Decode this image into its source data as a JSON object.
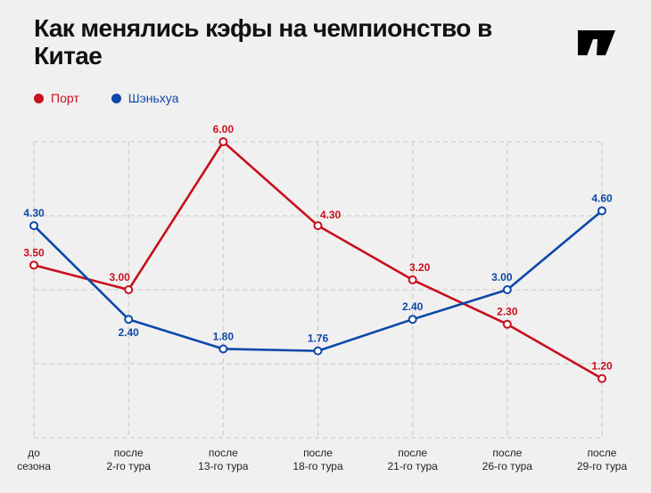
{
  "title": "Как менялись кэфы на чемпионство в Китае",
  "logo_text": "W",
  "chart_data": {
    "type": "line",
    "title": "Как менялись кэфы на чемпионство в Китае",
    "categories": [
      [
        "до",
        "сезона"
      ],
      [
        "после",
        "2-го тура"
      ],
      [
        "после",
        "13-го тура"
      ],
      [
        "после",
        "18-го тура"
      ],
      [
        "после",
        "21-го тура"
      ],
      [
        "после",
        "26-го тура"
      ],
      [
        "после",
        "29-го тура"
      ]
    ],
    "series": [
      {
        "name": "Порт",
        "color": "#c8101e",
        "values": [
          3.5,
          3.0,
          6.0,
          4.3,
          3.2,
          2.3,
          1.2
        ],
        "labels": [
          "3.50",
          "3.00",
          "6.00",
          "4.30",
          "3.20",
          "2.30",
          "1.20"
        ]
      },
      {
        "name": "Шэньхуа",
        "color": "#0b48a8",
        "values": [
          4.3,
          2.4,
          1.8,
          1.76,
          2.4,
          3.0,
          4.6
        ],
        "labels": [
          "4.30",
          "2.40",
          "1.80",
          "1.76",
          "2.40",
          "3.00",
          "4.60"
        ]
      }
    ],
    "ylim": [
      0,
      6
    ],
    "grid": true,
    "legend": "top-left"
  }
}
